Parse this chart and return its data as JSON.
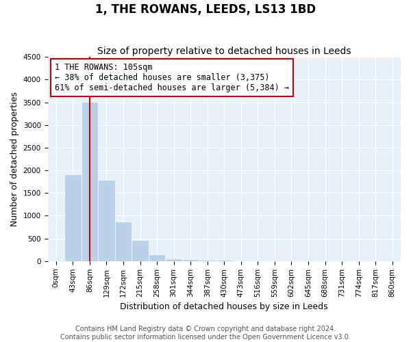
{
  "title": "1, THE ROWANS, LEEDS, LS13 1BD",
  "subtitle": "Size of property relative to detached houses in Leeds",
  "xlabel": "Distribution of detached houses by size in Leeds",
  "ylabel": "Number of detached properties",
  "bin_labels": [
    "0sqm",
    "43sqm",
    "86sqm",
    "129sqm",
    "172sqm",
    "215sqm",
    "258sqm",
    "301sqm",
    "344sqm",
    "387sqm",
    "430sqm",
    "473sqm",
    "516sqm",
    "559sqm",
    "602sqm",
    "645sqm",
    "688sqm",
    "731sqm",
    "774sqm",
    "817sqm",
    "860sqm"
  ],
  "bar_values": [
    0,
    1900,
    3500,
    1775,
    850,
    450,
    130,
    50,
    20,
    10,
    5,
    2,
    1,
    0,
    0,
    0,
    0,
    0,
    0,
    0,
    0
  ],
  "bar_color": "#b8d0e8",
  "highlight_bar_index": 2,
  "highlight_color": "#cc0000",
  "annotation_text": "1 THE ROWANS: 105sqm\n← 38% of detached houses are smaller (3,375)\n61% of semi-detached houses are larger (5,384) →",
  "annotation_box_color": "#cc0000",
  "ylim": [
    0,
    4500
  ],
  "yticks": [
    0,
    500,
    1000,
    1500,
    2000,
    2500,
    3000,
    3500,
    4000,
    4500
  ],
  "plot_bg_color": "#e8f0f8",
  "footer": "Contains HM Land Registry data © Crown copyright and database right 2024.\nContains public sector information licensed under the Open Government Licence v3.0.",
  "title_fontsize": 12,
  "subtitle_fontsize": 10,
  "axis_label_fontsize": 9,
  "tick_fontsize": 7.5,
  "annotation_fontsize": 8.5,
  "footer_fontsize": 7
}
